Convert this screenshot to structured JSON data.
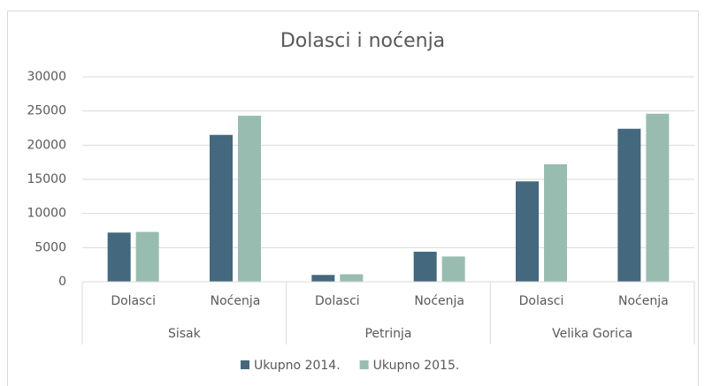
{
  "chart_data": {
    "type": "bar",
    "title": "Dolasci i noćenja",
    "categories": [
      "Dolasci",
      "Noćenja",
      "Dolasci",
      "Noćenja",
      "Dolasci",
      "Noćenja"
    ],
    "groups": [
      "Sisak",
      "Petrinja",
      "Velika Gorica"
    ],
    "series": [
      {
        "name": "Ukupno 2014.",
        "color": "#44687d",
        "values": [
          7200,
          21500,
          1000,
          4400,
          14700,
          22400
        ]
      },
      {
        "name": "Ukupno 2015.",
        "color": "#98bdb0",
        "values": [
          7300,
          24300,
          1100,
          3700,
          17200,
          24600
        ]
      }
    ],
    "ylim": [
      0,
      30000
    ],
    "yticks": [
      0,
      5000,
      10000,
      15000,
      20000,
      25000,
      30000
    ],
    "grid": true,
    "legend": "bottom"
  }
}
